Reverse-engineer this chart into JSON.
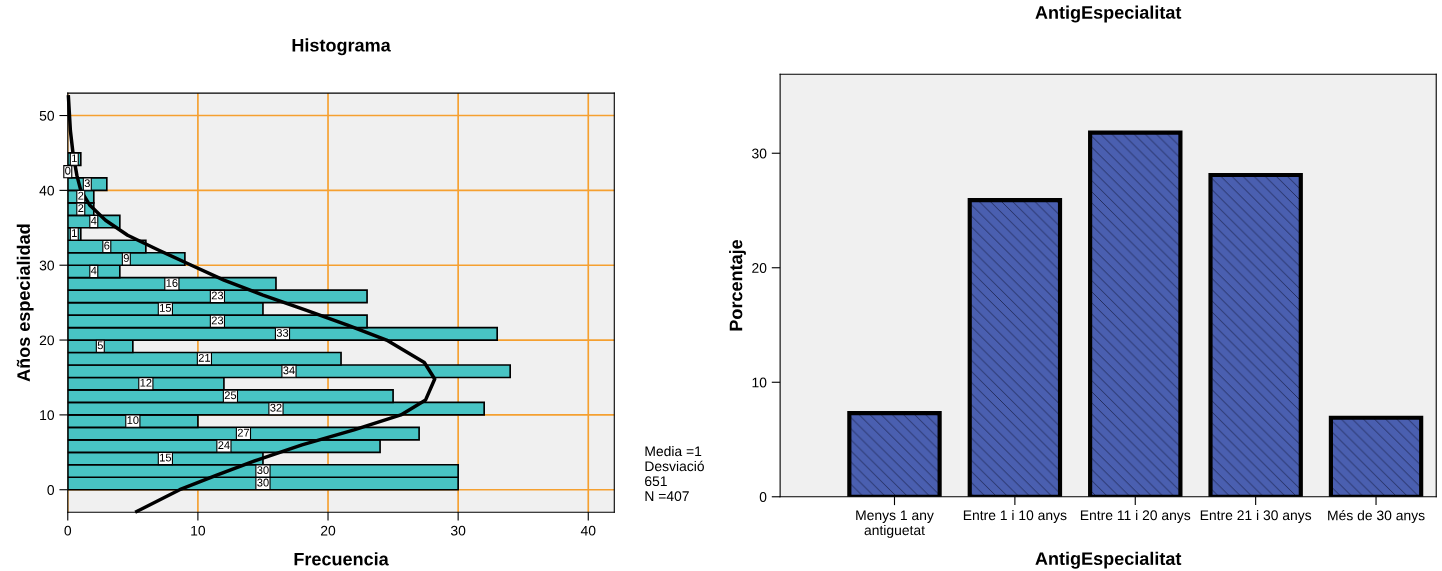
{
  "chart_data": [
    {
      "type": "histogram",
      "title": "Histograma",
      "xlabel": "Frecuencia",
      "ylabel": "Años especialidad",
      "orientation": "horizontal",
      "bins": [
        0,
        1.667,
        3.333,
        5,
        6.667,
        8.333,
        10,
        11.667,
        13.333,
        15,
        16.667,
        18.333,
        20,
        21.667,
        23.333,
        25,
        26.667,
        28.333,
        30,
        31.667,
        33.333,
        35,
        36.667,
        38.333,
        40,
        41.667,
        43.333,
        45
      ],
      "values": [
        30,
        30,
        15,
        24,
        27,
        10,
        32,
        25,
        12,
        34,
        21,
        5,
        33,
        23,
        15,
        23,
        16,
        4,
        9,
        6,
        1,
        4,
        2,
        2,
        3,
        0,
        1
      ],
      "value_labels": [
        "30",
        "30",
        "15",
        "24",
        "27",
        "10",
        "32",
        "25",
        "12",
        "34",
        "21",
        "5",
        "33",
        "23",
        "15",
        "23",
        "16",
        "4",
        "9",
        "6",
        "1",
        "4",
        "2",
        "2",
        "3",
        "0",
        "1"
      ],
      "color": "#48c4c4",
      "series": [
        {
          "type": "line",
          "color": "#000000",
          "x": [
            -2.9,
            0,
            2,
            4,
            6,
            8,
            10,
            12,
            14.8,
            17,
            20,
            22,
            24,
            26,
            28,
            30,
            32,
            34,
            36,
            38,
            40,
            42,
            45,
            48,
            52.5
          ],
          "values": [
            5.3,
            8.6,
            11.5,
            14.6,
            18,
            22,
            25.6,
            27.5,
            28.2,
            27.4,
            24.5,
            21.5,
            18.3,
            15,
            12,
            9.5,
            7,
            4.6,
            2.9,
            1.7,
            1.0,
            0.7,
            0.4,
            0.2,
            0.05
          ]
        }
      ],
      "xlim": [
        0,
        42
      ],
      "xticks": [
        0,
        10,
        20,
        30,
        40
      ],
      "ylim": [
        -3,
        53
      ],
      "yticks": [
        0,
        10,
        20,
        30,
        40,
        50
      ],
      "grid": true,
      "annotations": [
        "Media =1\nDesviació\n651\nN =407"
      ]
    },
    {
      "type": "bar",
      "title": "AntigEspecialitat",
      "xlabel": "AntigEspecialitat",
      "ylabel": "Porcentaje",
      "categories": [
        "Menys 1 any\nantiguetat",
        "Entre 1 i 10 anys",
        "Entre 11 i 20 anys",
        "Entre 21 i 30 anys",
        "Més de 30 anys"
      ],
      "values": [
        7.3,
        25.9,
        31.8,
        28.1,
        6.9
      ],
      "color": "#4a5fb0",
      "ylim": [
        0,
        36.9
      ],
      "yticks": [
        0,
        10,
        20,
        30
      ],
      "grid": false
    }
  ]
}
